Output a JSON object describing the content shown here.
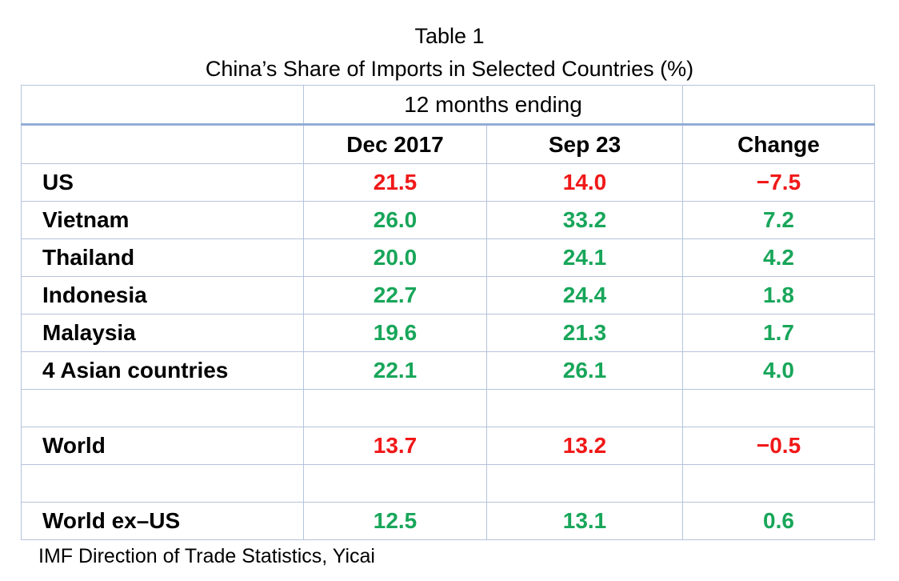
{
  "chart_data": {
    "type": "table",
    "title": "Table 1",
    "subtitle": "China’s Share of Imports in Selected Countries (%)",
    "group_header": "12 months ending",
    "columns": [
      "",
      "Dec 2017",
      "Sep 23",
      "Change"
    ],
    "rows": [
      {
        "label": "US",
        "values": [
          "21.5",
          "14.0",
          "−7.5"
        ],
        "color": "#f01818"
      },
      {
        "label": "Vietnam",
        "values": [
          "26.0",
          "33.2",
          "7.2"
        ],
        "color": "#18a65a"
      },
      {
        "label": "Thailand",
        "values": [
          "20.0",
          "24.1",
          "4.2"
        ],
        "color": "#18a65a"
      },
      {
        "label": "Indonesia",
        "values": [
          "22.7",
          "24.4",
          "1.8"
        ],
        "color": "#18a65a"
      },
      {
        "label": "Malaysia",
        "values": [
          "19.6",
          "21.3",
          "1.7"
        ],
        "color": "#18a65a"
      },
      {
        "label": "4 Asian countries",
        "values": [
          "22.1",
          "26.1",
          "4.0"
        ],
        "color": "#18a65a"
      },
      {
        "label": "World",
        "values": [
          "13.7",
          "13.2",
          "−0.5"
        ],
        "color": "#f01818"
      },
      {
        "label": "World ex–US",
        "values": [
          "12.5",
          "13.1",
          "0.6"
        ],
        "color": "#18a65a"
      }
    ],
    "source": "IMF Direction of Trade Statistics, Yicai",
    "colors": {
      "negative": "#f01818",
      "positive": "#18a65a",
      "border": "#b5c3dc"
    }
  }
}
